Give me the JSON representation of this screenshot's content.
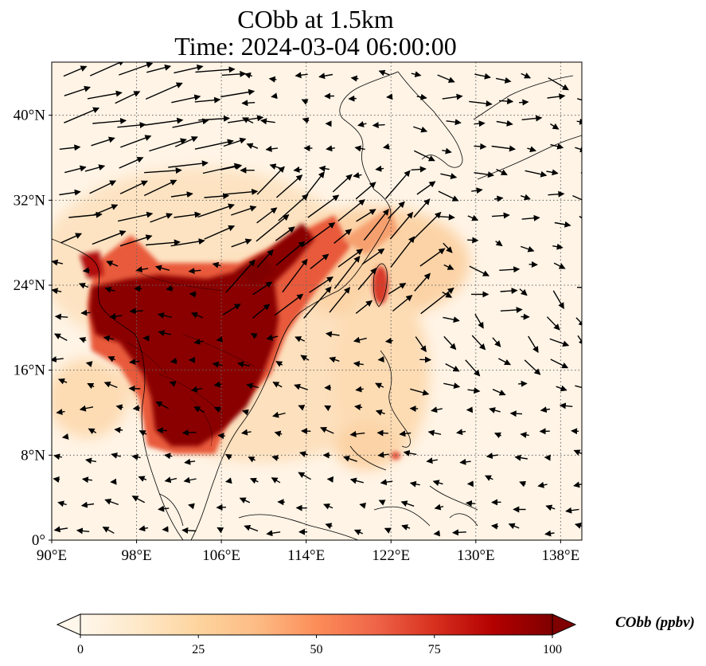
{
  "title": {
    "line1": "CObb at 1.5km",
    "line2": "Time: 2024-03-04 06:00:00"
  },
  "map": {
    "lon_range": [
      90,
      140
    ],
    "lat_range": [
      0,
      45
    ],
    "lon_ticks": [
      "90°E",
      "98°E",
      "106°E",
      "114°E",
      "122°E",
      "130°E",
      "138°E"
    ],
    "lat_ticks": [
      "0°",
      "8°N",
      "16°N",
      "24°N",
      "32°N",
      "40°N"
    ],
    "lon_tick_values": [
      90,
      98,
      106,
      114,
      122,
      130,
      138
    ],
    "lat_tick_values": [
      0,
      8,
      16,
      24,
      32,
      40
    ],
    "gridlines": "dotted",
    "colormap": "OrRd",
    "plumes": [
      {
        "lon": 105,
        "lat": 19,
        "value": 100
      },
      {
        "lon": 101,
        "lat": 21.5,
        "value": 100
      },
      {
        "lon": 96,
        "lat": 22,
        "value": 95
      },
      {
        "lon": 105,
        "lat": 13,
        "value": 100
      },
      {
        "lon": 101,
        "lat": 12,
        "value": 95
      },
      {
        "lon": 109,
        "lat": 23.5,
        "value": 100
      },
      {
        "lon": 112,
        "lat": 24.5,
        "value": 90
      },
      {
        "lon": 96,
        "lat": 27,
        "value": 85
      },
      {
        "lon": 118,
        "lat": 28,
        "value": 55
      },
      {
        "lon": 121,
        "lat": 24,
        "value": 75
      },
      {
        "lon": 121,
        "lat": 8,
        "value": 60
      }
    ]
  },
  "colorbar": {
    "ticks": [
      "0",
      "25",
      "50",
      "75",
      "100"
    ],
    "tick_values": [
      0,
      25,
      50,
      75,
      100
    ],
    "range": [
      0,
      100
    ],
    "extend": "both",
    "label": "CObb (ppbv)"
  }
}
